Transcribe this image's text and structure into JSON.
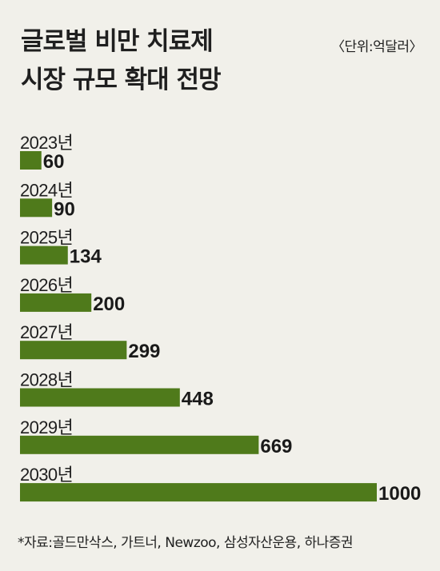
{
  "header": {
    "title_line1": "글로벌 비만 치료제",
    "title_line2": "시장 규모 확대 전망",
    "unit": "〈단위:억달러〉"
  },
  "source": "*자료:골드만삭스, 가트너, Newzoo, 삼성자산운용, 하나증권",
  "colors": {
    "bar": "#4f7a1b",
    "background": "#f1f0ea"
  },
  "chart_data": {
    "type": "bar",
    "orientation": "horizontal",
    "categories": [
      "2023년",
      "2024년",
      "2025년",
      "2026년",
      "2027년",
      "2028년",
      "2029년",
      "2030년"
    ],
    "values": [
      60,
      90,
      134,
      200,
      299,
      448,
      669,
      1000
    ],
    "value_labels": [
      "60",
      "90",
      "134",
      "200",
      "299",
      "448",
      "669",
      "1000"
    ],
    "xlim": [
      0,
      1000
    ],
    "grid": false,
    "legend": "none"
  }
}
